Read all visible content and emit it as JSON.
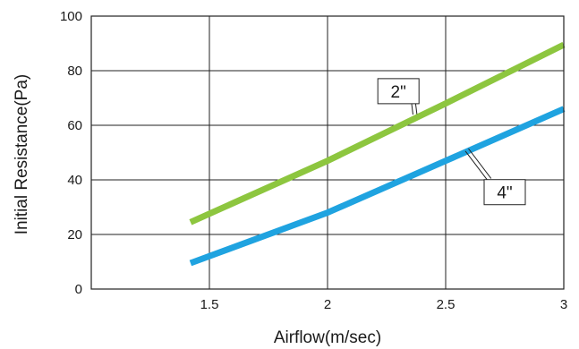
{
  "chart_data": {
    "type": "line",
    "xlabel": "Airflow(m/sec)",
    "ylabel": "Initial Resistance(Pa)",
    "xlim": [
      1,
      3
    ],
    "ylim": [
      0,
      100
    ],
    "x_ticks": [
      1.5,
      2,
      2.5,
      3
    ],
    "x_tick_labels": [
      "1.5",
      "2",
      "2.5",
      "3"
    ],
    "y_ticks": [
      0,
      20,
      40,
      60,
      80,
      100
    ],
    "y_tick_labels": [
      "0",
      "20",
      "40",
      "60",
      "80",
      "100"
    ],
    "grid": true,
    "series": [
      {
        "name": "2\"",
        "color": "#8dc63f",
        "x": [
          1.42,
          2.0,
          2.5,
          3.0
        ],
        "y": [
          24.5,
          47,
          68,
          89.5
        ],
        "callout_anchor": [
          2.37,
          64
        ],
        "callout_box": [
          2.3,
          72.5
        ]
      },
      {
        "name": "4\"",
        "color": "#1fa3e0",
        "x": [
          1.42,
          2.0,
          2.5,
          3.0
        ],
        "y": [
          9.5,
          28,
          47,
          66
        ],
        "callout_anchor": [
          2.59,
          51
        ],
        "callout_box": [
          2.75,
          35.5
        ]
      }
    ]
  }
}
